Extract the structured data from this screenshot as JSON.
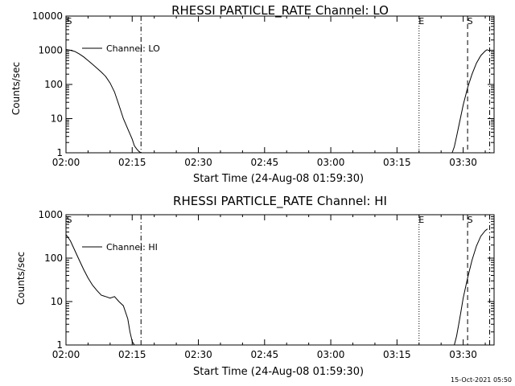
{
  "footer_timestamp": "15-Oct-2021 05:50",
  "chart_data": [
    {
      "type": "line",
      "title": "RHESSI PARTICLE_RATE Channel: LO",
      "xlabel": "Start Time (24-Aug-08 01:59:30)",
      "ylabel": "Counts/sec",
      "y_scale": "log",
      "xlim": [
        "02:00",
        "03:37"
      ],
      "ylim": [
        1,
        10000
      ],
      "x_ticks": [
        "02:00",
        "02:15",
        "02:30",
        "02:45",
        "03:00",
        "03:15",
        "03:30"
      ],
      "y_ticks": [
        "1",
        "10",
        "100",
        "1000",
        "10000"
      ],
      "legend": {
        "entries": [
          "Channel: LO"
        ],
        "placement": "top-left"
      },
      "series": [
        {
          "name": "Channel: LO",
          "x": [
            "02:00",
            "02:01",
            "02:02",
            "02:03",
            "02:04",
            "02:05",
            "02:06",
            "02:07",
            "02:08",
            "02:09",
            "02:10",
            "02:11",
            "02:12",
            "02:13",
            "02:14",
            "02:15",
            "02:15.5",
            "02:16",
            "02:16.5",
            "02:17",
            null,
            "03:27.5",
            "03:28",
            "03:28.5",
            "03:29",
            "03:30",
            "03:31",
            "03:32",
            "03:33",
            "03:34",
            "03:35",
            "03:35.5"
          ],
          "y": [
            1050,
            1000,
            920,
            780,
            640,
            500,
            390,
            300,
            230,
            170,
            110,
            60,
            25,
            10,
            5,
            2.5,
            1.6,
            1.3,
            1.1,
            1.0,
            null,
            1.0,
            1.5,
            3,
            6,
            25,
            80,
            200,
            420,
            700,
            950,
            1050
          ]
        }
      ],
      "vertical_markers": [
        {
          "x": "02:17",
          "style": "dash-dot"
        },
        {
          "x": "03:20",
          "label": "E",
          "style": "dotted"
        },
        {
          "x": "03:31",
          "label": "S",
          "style": "dashed"
        },
        {
          "x": "03:36",
          "style": "dash-dot"
        }
      ],
      "start_marker_label": "S"
    },
    {
      "type": "line",
      "title": "RHESSI PARTICLE_RATE Channel: HI",
      "xlabel": "Start Time (24-Aug-08 01:59:30)",
      "ylabel": "Counts/sec",
      "y_scale": "log",
      "xlim": [
        "02:00",
        "03:37"
      ],
      "ylim": [
        1,
        1000
      ],
      "x_ticks": [
        "02:00",
        "02:15",
        "02:30",
        "02:45",
        "03:00",
        "03:15",
        "03:30"
      ],
      "y_ticks": [
        "1",
        "10",
        "100",
        "1000"
      ],
      "legend": {
        "entries": [
          "Channel: HI"
        ],
        "placement": "top-left"
      },
      "series": [
        {
          "name": "Channel: HI",
          "x": [
            "02:00",
            "02:01",
            "02:02",
            "02:03",
            "02:04",
            "02:05",
            "02:06",
            "02:07",
            "02:08",
            "02:09",
            "02:10",
            "02:11",
            "02:12",
            "02:13",
            "02:14",
            "02:14.5",
            "02:15",
            "02:15.5",
            null,
            "03:28",
            "03:28.5",
            "03:29",
            "03:29.5",
            "03:30",
            "03:31",
            "03:32",
            "03:33",
            "03:34",
            "03:35",
            "03:35.5"
          ],
          "y": [
            350,
            250,
            150,
            90,
            55,
            35,
            24,
            18,
            14,
            13,
            12,
            13,
            10,
            8,
            4,
            2,
            1.2,
            1.0,
            null,
            1.0,
            1.6,
            3,
            6,
            12,
            35,
            90,
            190,
            320,
            430,
            470
          ]
        }
      ],
      "vertical_markers": [
        {
          "x": "02:17",
          "style": "dash-dot"
        },
        {
          "x": "03:20",
          "label": "E",
          "style": "dotted"
        },
        {
          "x": "03:31",
          "label": "S",
          "style": "dashed"
        },
        {
          "x": "03:36",
          "style": "dash-dot"
        }
      ],
      "start_marker_label": "S"
    }
  ]
}
